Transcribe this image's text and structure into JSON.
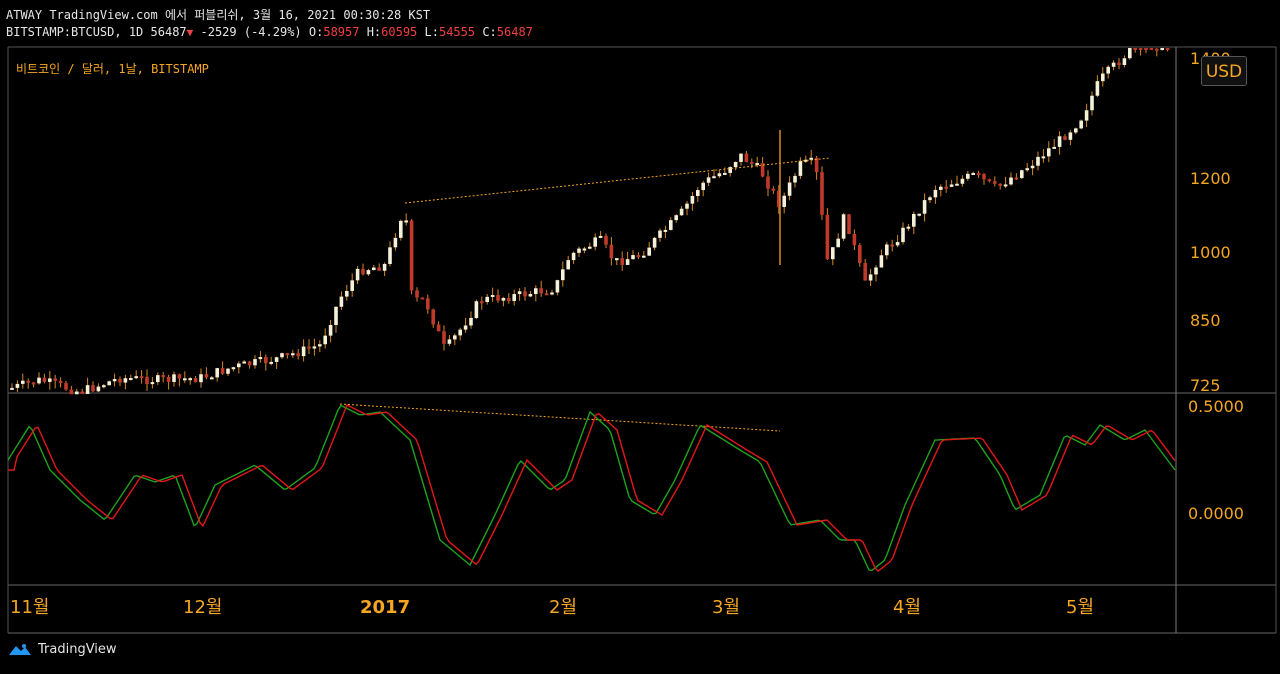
{
  "header": {
    "line1": "ATWAY TradingView.com 에서 퍼블리쉬, 3월 16, 2021 00:30:28 KST",
    "symbol": "BITSTAMP:BTCUSD, 1D",
    "last": "56487",
    "change": "-2529 (-4.29%)",
    "o_label": "O:",
    "o": "58957",
    "h_label": "H:",
    "h": "60595",
    "l_label": "L:",
    "l": "54555",
    "c_label": "C:",
    "c": "56487"
  },
  "chart_data": {
    "type": "candlestick",
    "title": "비트코인 / 달러, 1날, BITSTAMP",
    "currency": "USD",
    "price_scale": "log",
    "price_ticks": [
      "1400",
      "1200",
      "1000",
      "850",
      "725"
    ],
    "time_ticks": [
      "11월",
      "12월",
      "2017",
      "2월",
      "3월",
      "4월",
      "5월"
    ],
    "osc_ticks": [
      "0.5000",
      "0.0000"
    ],
    "colors": {
      "up": "#f5f0d8",
      "down": "#c0392b",
      "wick": "#d4882a",
      "axis_text": "#f5a623",
      "osc_fast": "#1fa11f",
      "osc_slow": "#e01818",
      "trendline": "#f5a623"
    }
  },
  "footer": {
    "brand": "TradingView"
  }
}
